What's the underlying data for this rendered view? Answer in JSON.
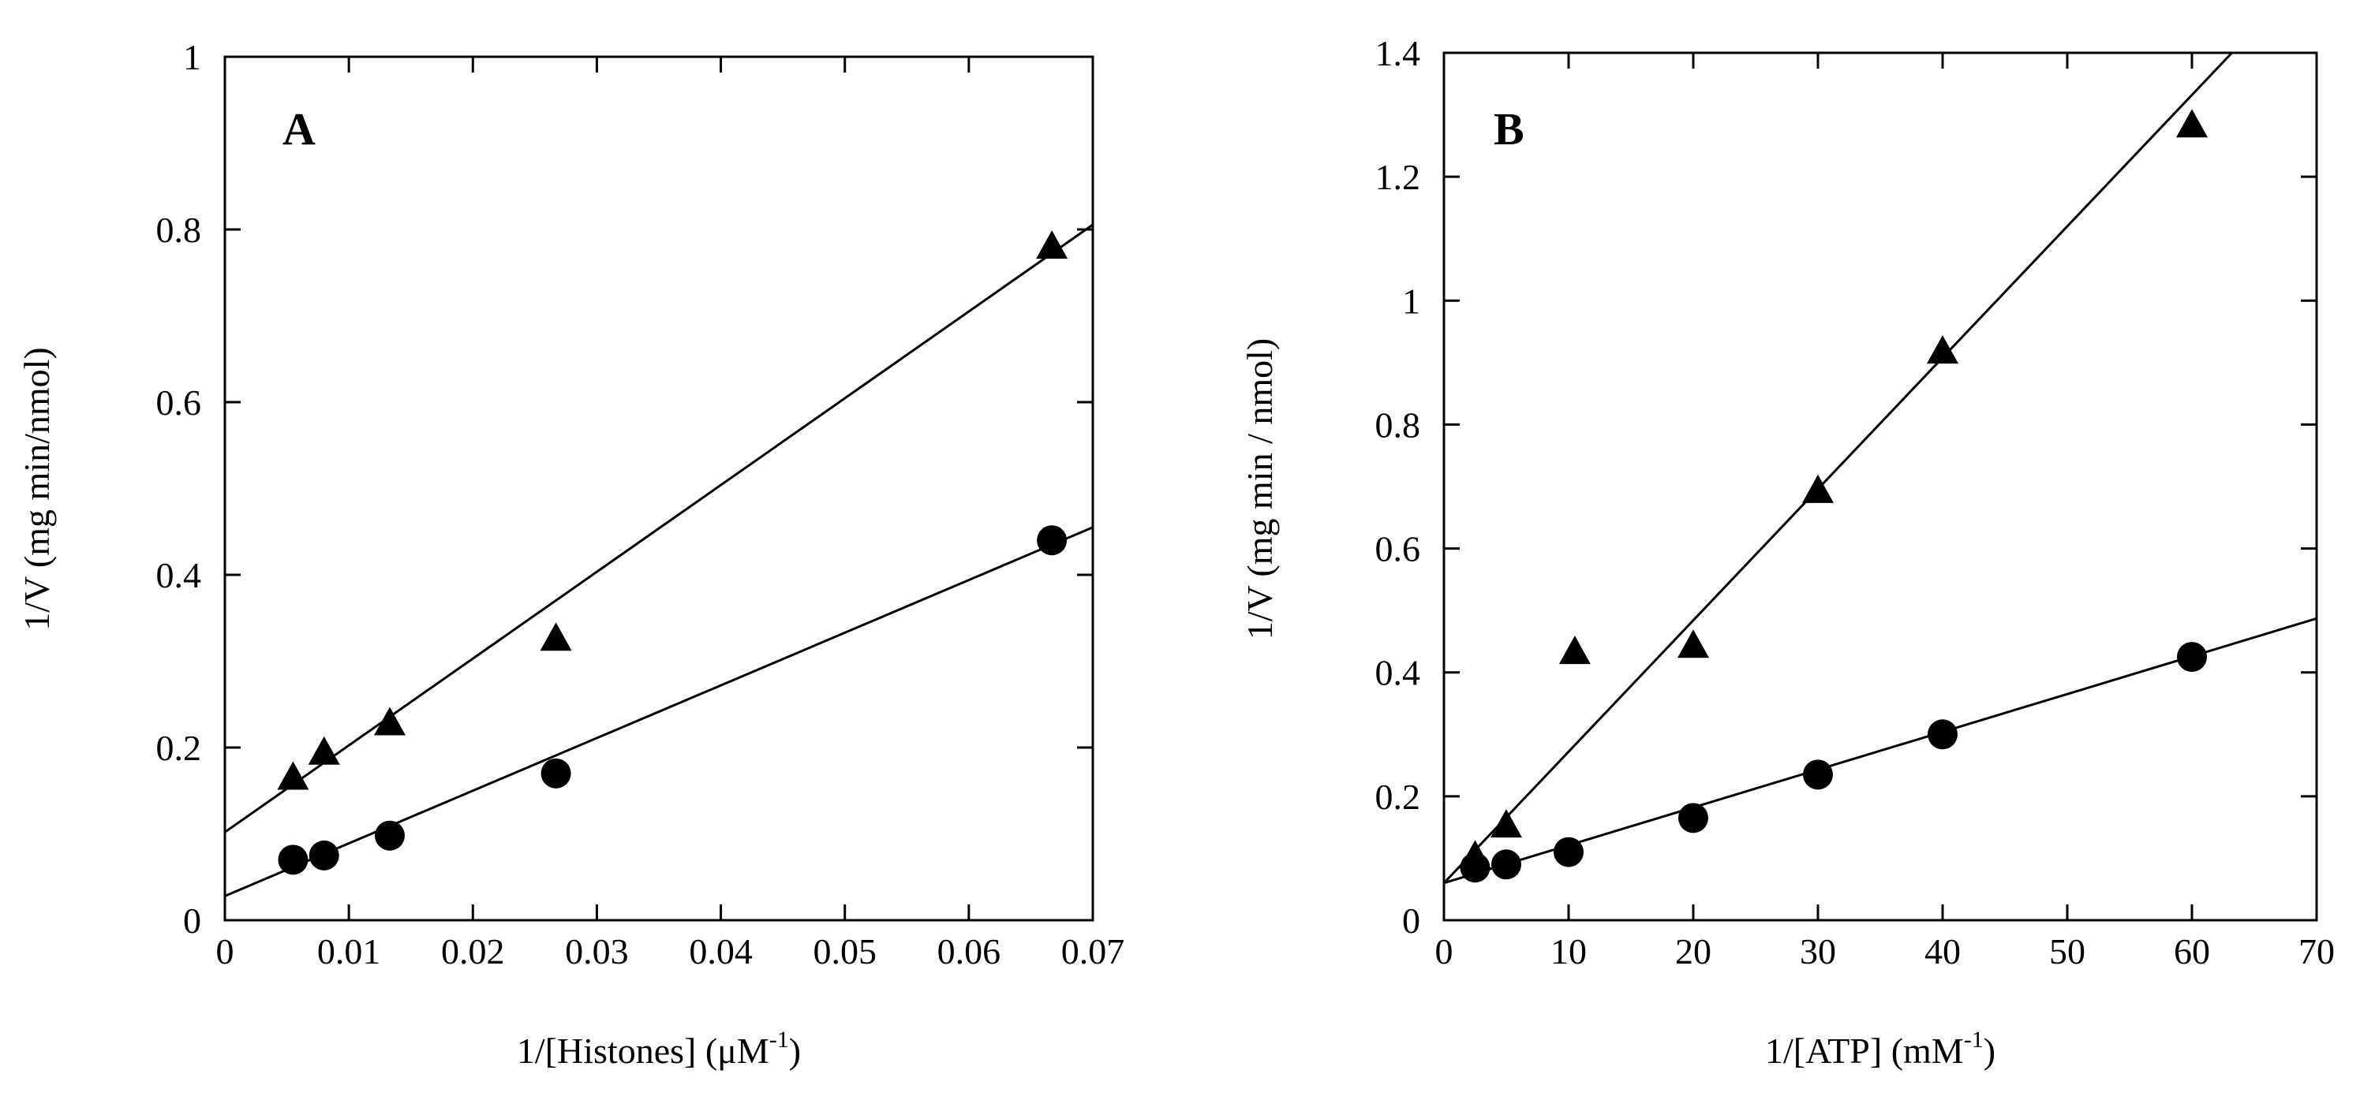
{
  "chart_data": [
    {
      "type": "scatter",
      "panel_label": "A",
      "xlabel": "1/[Histones] (μM",
      "xlabel_sup": "-1",
      "xlabel_end": ")",
      "ylabel": "1/V (mg min/nmol)",
      "xlim": [
        0,
        0.07
      ],
      "ylim": [
        0,
        1
      ],
      "x_ticks": [
        0,
        0.01,
        0.02,
        0.03,
        0.04,
        0.05,
        0.06,
        0.07
      ],
      "x_tick_labels": [
        "0",
        "0.01",
        "0.02",
        "0.03",
        "0.04",
        "0.05",
        "0.06",
        "0.07"
      ],
      "y_ticks": [
        0,
        0.2,
        0.4,
        0.6,
        0.8,
        1
      ],
      "y_tick_labels": [
        "0",
        "0.2",
        "0.4",
        "0.6",
        "0.8",
        "1"
      ],
      "series": [
        {
          "name": "triangles",
          "marker": "triangle",
          "x": [
            0.0055,
            0.008,
            0.0133,
            0.0267,
            0.0667
          ],
          "y": [
            0.163,
            0.192,
            0.226,
            0.324,
            0.778
          ],
          "fit": {
            "intercept": 0.102,
            "slope": 10.05
          }
        },
        {
          "name": "circles",
          "marker": "circle",
          "x": [
            0.0055,
            0.008,
            0.0133,
            0.0267,
            0.0667
          ],
          "y": [
            0.07,
            0.075,
            0.098,
            0.17,
            0.44
          ],
          "fit": {
            "intercept": 0.028,
            "slope": 6.1
          }
        }
      ]
    },
    {
      "type": "scatter",
      "panel_label": "B",
      "xlabel": "1/[ATP] (mM",
      "xlabel_sup": "-1",
      "xlabel_end": ")",
      "ylabel": "1/V (mg min / nmol)",
      "xlim": [
        0,
        70
      ],
      "ylim": [
        0,
        1.4
      ],
      "x_ticks": [
        0,
        10,
        20,
        30,
        40,
        50,
        60,
        70
      ],
      "x_tick_labels": [
        "0",
        "10",
        "20",
        "30",
        "40",
        "50",
        "60",
        "70"
      ],
      "y_ticks": [
        0,
        0.2,
        0.4,
        0.6,
        0.8,
        1,
        1.2,
        1.4
      ],
      "y_tick_labels": [
        "0",
        "0.2",
        "0.4",
        "0.6",
        "0.8",
        "1",
        "1.2",
        "1.4"
      ],
      "series": [
        {
          "name": "triangles",
          "marker": "triangle",
          "x": [
            2.5,
            5,
            10.5,
            20,
            30,
            40,
            60
          ],
          "y": [
            0.1,
            0.15,
            0.43,
            0.44,
            0.69,
            0.915,
            1.28
          ],
          "fit": {
            "intercept": 0.06,
            "slope": 0.0212
          }
        },
        {
          "name": "circles",
          "marker": "circle",
          "x": [
            2.5,
            5,
            10,
            20,
            30,
            40,
            60
          ],
          "y": [
            0.085,
            0.09,
            0.11,
            0.165,
            0.235,
            0.3,
            0.425
          ],
          "fit": {
            "intercept": 0.06,
            "slope": 0.0061
          }
        }
      ]
    }
  ]
}
